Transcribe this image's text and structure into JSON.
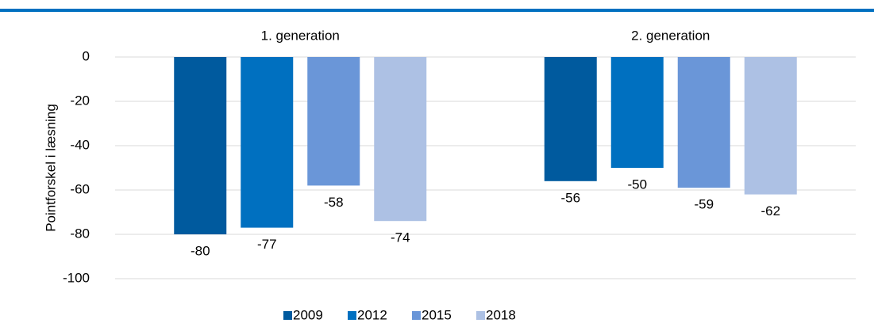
{
  "chart_data": {
    "type": "bar",
    "y_label": "Pointforskel i læsning",
    "categories": [
      "1. generation",
      "2. generation"
    ],
    "series": [
      {
        "name": "2009",
        "color": "#005a9e",
        "values": [
          -80,
          -56
        ]
      },
      {
        "name": "2012",
        "color": "#0070c0",
        "values": [
          -77,
          -50
        ]
      },
      {
        "name": "2015",
        "color": "#6a96d8",
        "values": [
          -58,
          -59
        ]
      },
      {
        "name": "2018",
        "color": "#adc1e4",
        "values": [
          -74,
          -62
        ]
      }
    ],
    "ylim": [
      -100,
      0
    ],
    "yticks": [
      0,
      -20,
      -40,
      -60,
      -80,
      -100
    ],
    "grid": true,
    "legend": "bottom"
  }
}
